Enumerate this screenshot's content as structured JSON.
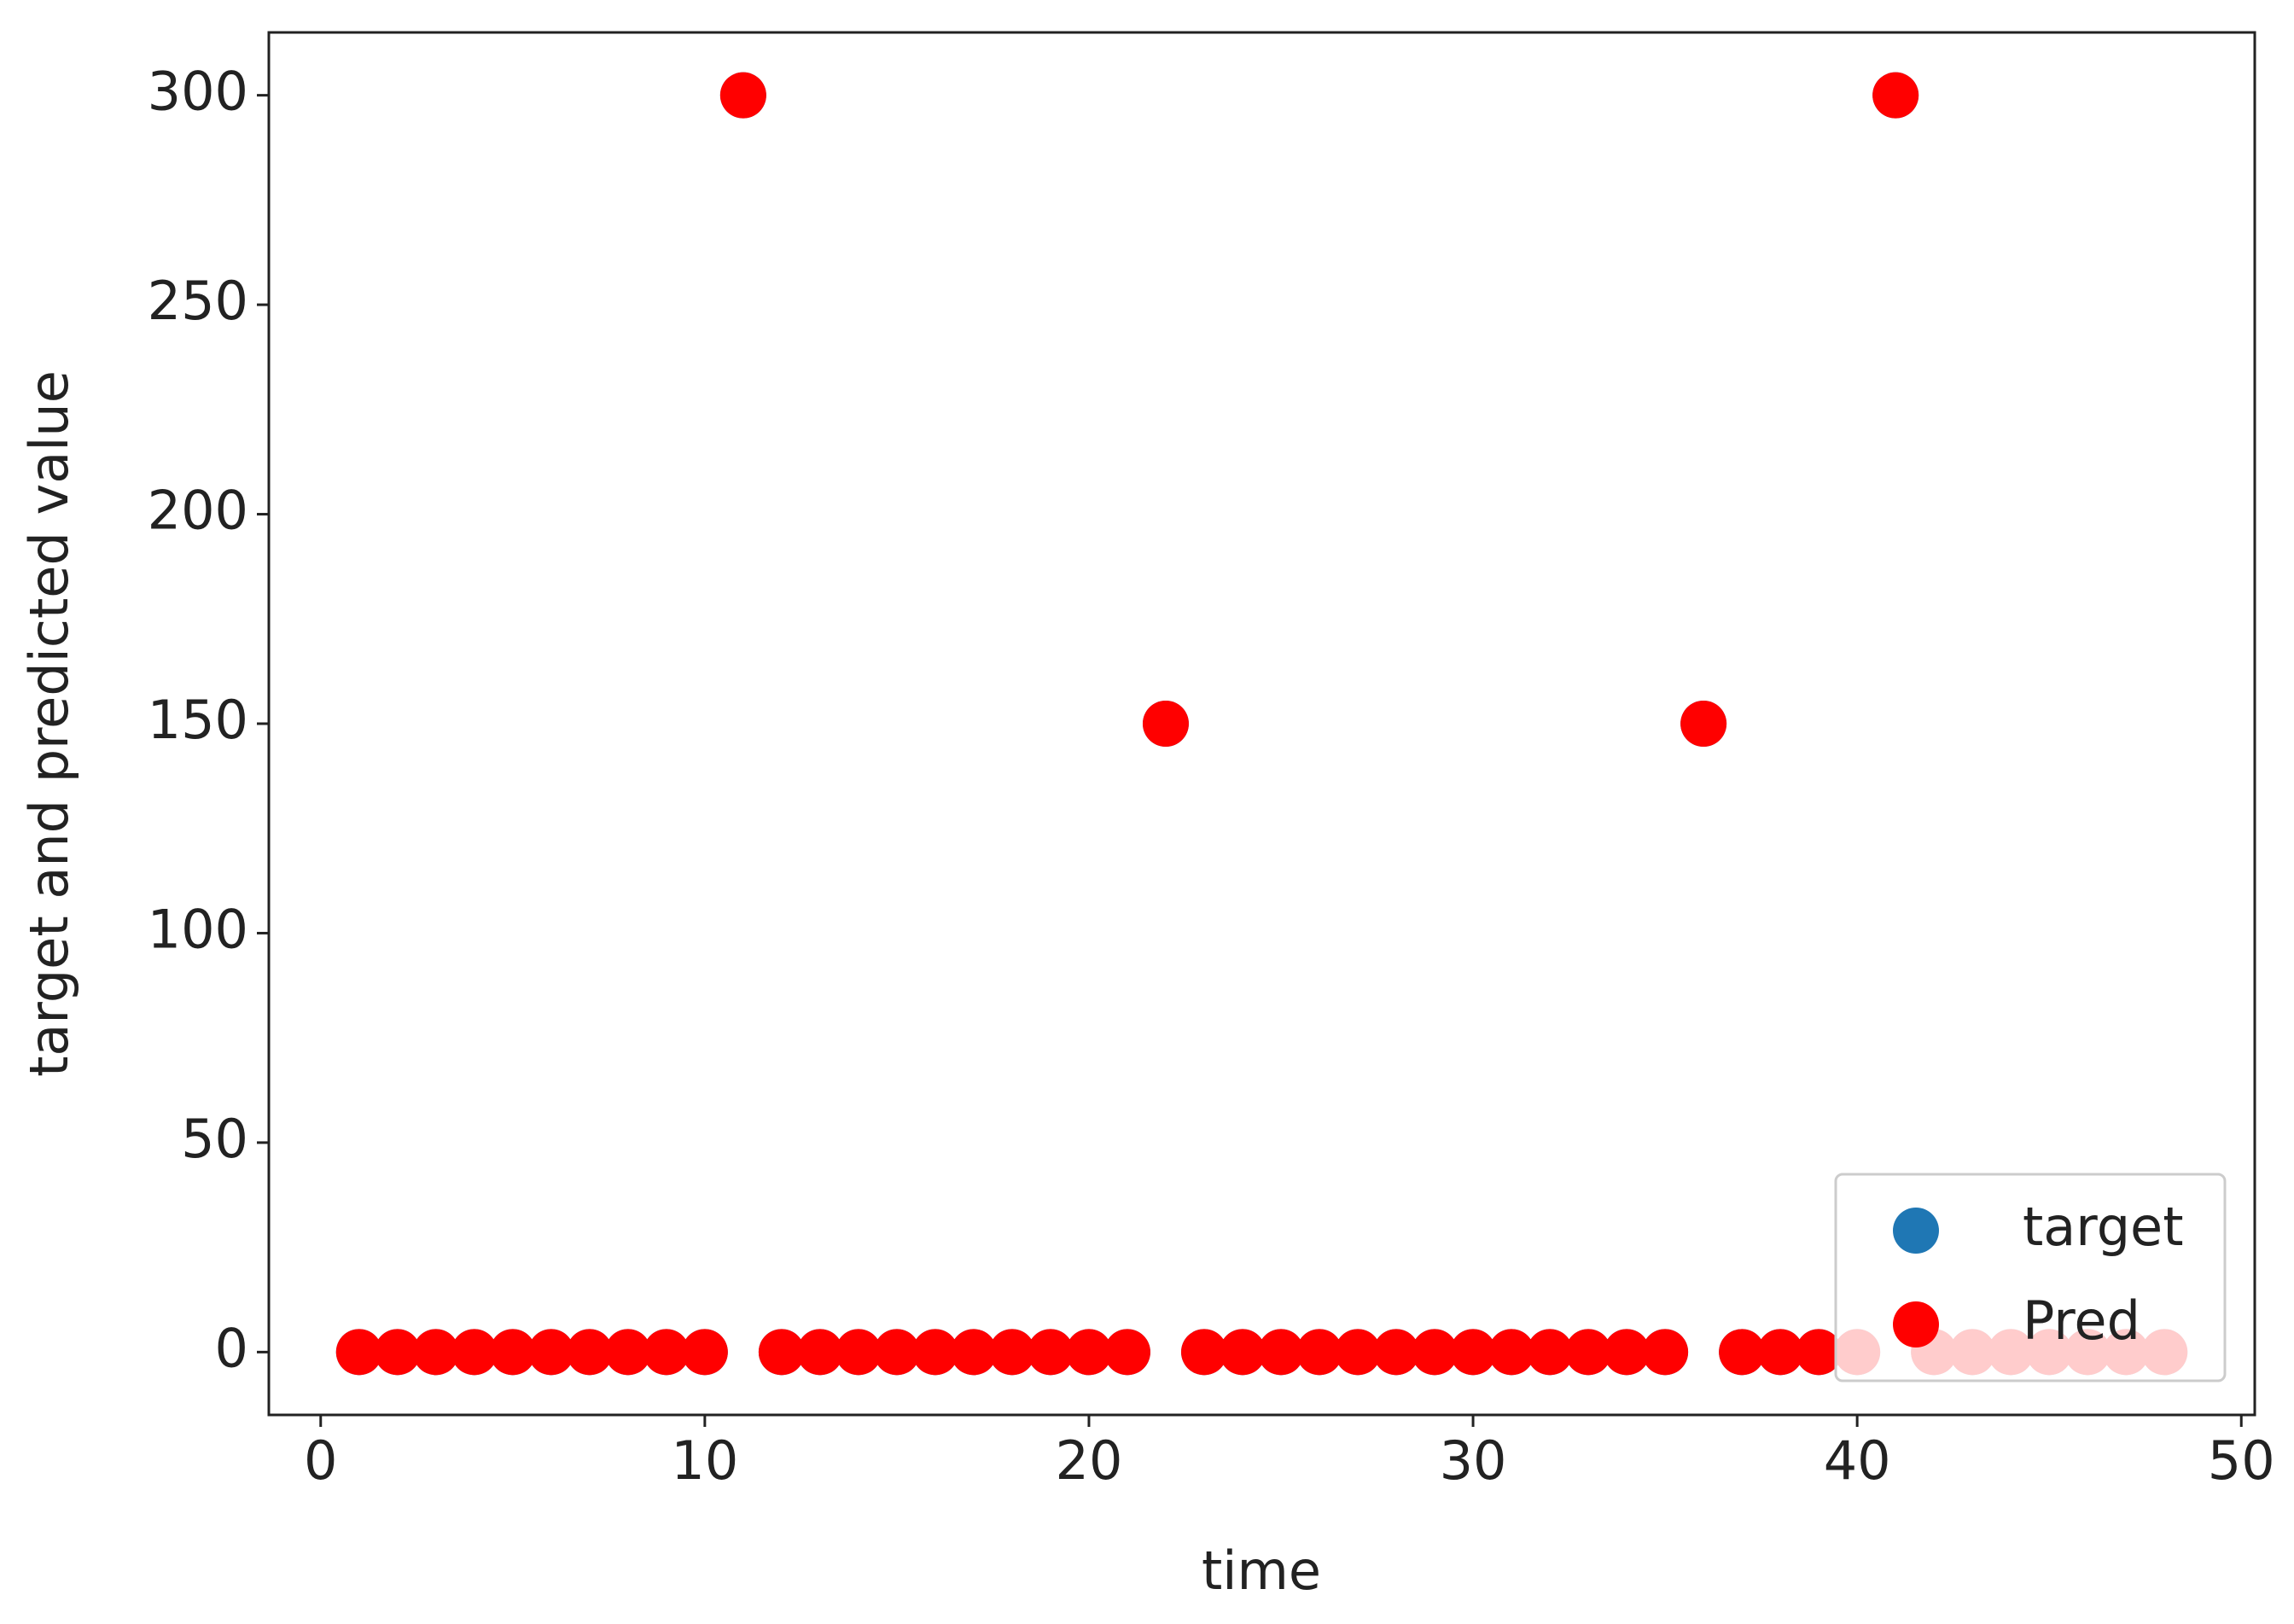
{
  "chart_data": {
    "type": "scatter",
    "xlabel": "time",
    "ylabel": "target and predicted value",
    "x": [
      1,
      2,
      3,
      4,
      5,
      6,
      7,
      8,
      9,
      10,
      11,
      12,
      13,
      14,
      15,
      16,
      17,
      18,
      19,
      20,
      21,
      22,
      23,
      24,
      25,
      26,
      27,
      28,
      29,
      30,
      31,
      32,
      33,
      34,
      35,
      36,
      37,
      38,
      39,
      40,
      41,
      42,
      43,
      44,
      45,
      46,
      47,
      48
    ],
    "series": [
      {
        "name": "target",
        "color": "#1f77b4",
        "values": [
          0,
          0,
          0,
          0,
          0,
          0,
          0,
          0,
          0,
          0,
          300,
          0,
          0,
          0,
          0,
          0,
          0,
          0,
          0,
          0,
          0,
          150,
          0,
          0,
          0,
          0,
          0,
          0,
          0,
          0,
          0,
          0,
          0,
          0,
          0,
          150,
          0,
          0,
          0,
          0,
          300,
          0,
          0,
          0,
          0,
          0,
          0,
          0
        ]
      },
      {
        "name": "Pred",
        "color": "#ff0000",
        "values": [
          0,
          0,
          0,
          0,
          0,
          0,
          0,
          0,
          0,
          0,
          300,
          0,
          0,
          0,
          0,
          0,
          0,
          0,
          0,
          0,
          0,
          150,
          0,
          0,
          0,
          0,
          0,
          0,
          0,
          0,
          0,
          0,
          0,
          0,
          0,
          150,
          0,
          0,
          0,
          0,
          300,
          0,
          0,
          0,
          0,
          0,
          0,
          0
        ]
      }
    ],
    "xlim": [
      -1.35,
      50.35
    ],
    "ylim": [
      -15,
      315
    ],
    "xticks": [
      0,
      10,
      20,
      30,
      40,
      50
    ],
    "yticks": [
      0,
      50,
      100,
      150,
      200,
      250,
      300
    ],
    "legend": "lower right",
    "grid": false
  }
}
